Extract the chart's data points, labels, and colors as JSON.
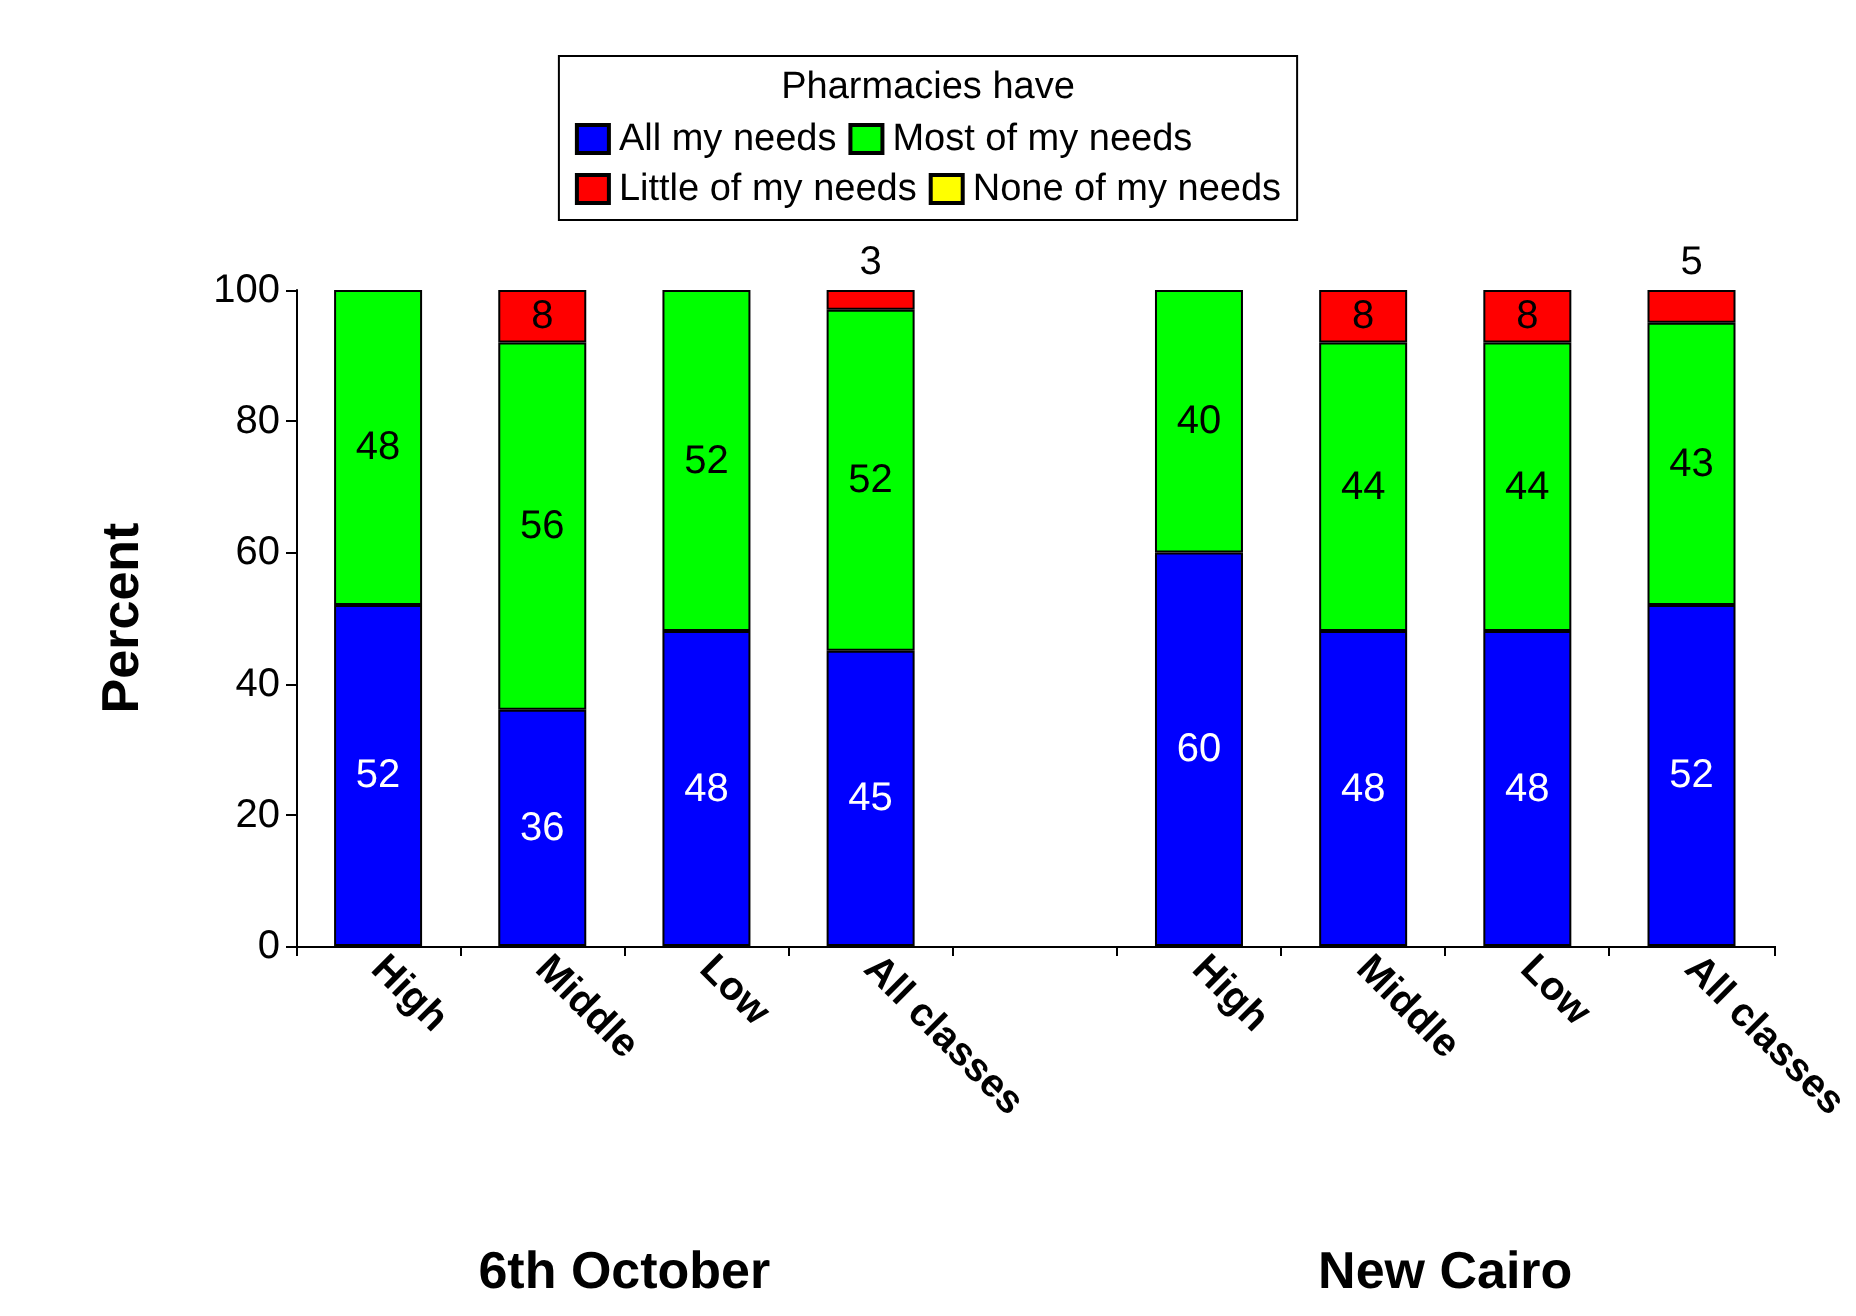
{
  "chart_data": {
    "type": "bar",
    "stacked": true,
    "ylabel": "Percent",
    "legend_title": "Pharmacies have",
    "legend": "top",
    "grid": false,
    "categories": [
      "High",
      "Middle",
      "Low",
      "All classes",
      null,
      "High",
      "Middle",
      "Low",
      "All classes"
    ],
    "ylim": [
      0,
      100
    ],
    "yticks": [
      0,
      20,
      40,
      60,
      80,
      100
    ],
    "series": [
      {
        "name": "All my needs",
        "color": "#0000ff",
        "values": [
          52,
          36,
          48,
          45,
          null,
          60,
          48,
          48,
          52
        ],
        "value_labels": [
          "52",
          "36",
          "48",
          "45",
          null,
          "60",
          "48",
          "48",
          "52"
        ]
      },
      {
        "name": "Most of my needs",
        "color": "#00ff00",
        "values": [
          48,
          56,
          52,
          52,
          null,
          40,
          44,
          44,
          43
        ],
        "value_labels": [
          "48",
          "56",
          "52",
          "52",
          null,
          "40",
          "44",
          "44",
          "43"
        ]
      },
      {
        "name": "Little of my needs",
        "color": "#ff0000",
        "values": [
          0,
          8,
          0,
          3,
          null,
          0,
          8,
          8,
          5
        ],
        "value_labels": [
          null,
          "8",
          null,
          "3",
          null,
          null,
          "8",
          "8",
          "5"
        ]
      },
      {
        "name": "None of my needs",
        "color": "#ffff00",
        "values": [
          0,
          0,
          0,
          0,
          null,
          0,
          0,
          0,
          0
        ],
        "value_labels": [
          null,
          null,
          null,
          null,
          null,
          null,
          null,
          null,
          null
        ]
      }
    ],
    "annotations": [
      "6th October",
      "New Cairo"
    ]
  }
}
